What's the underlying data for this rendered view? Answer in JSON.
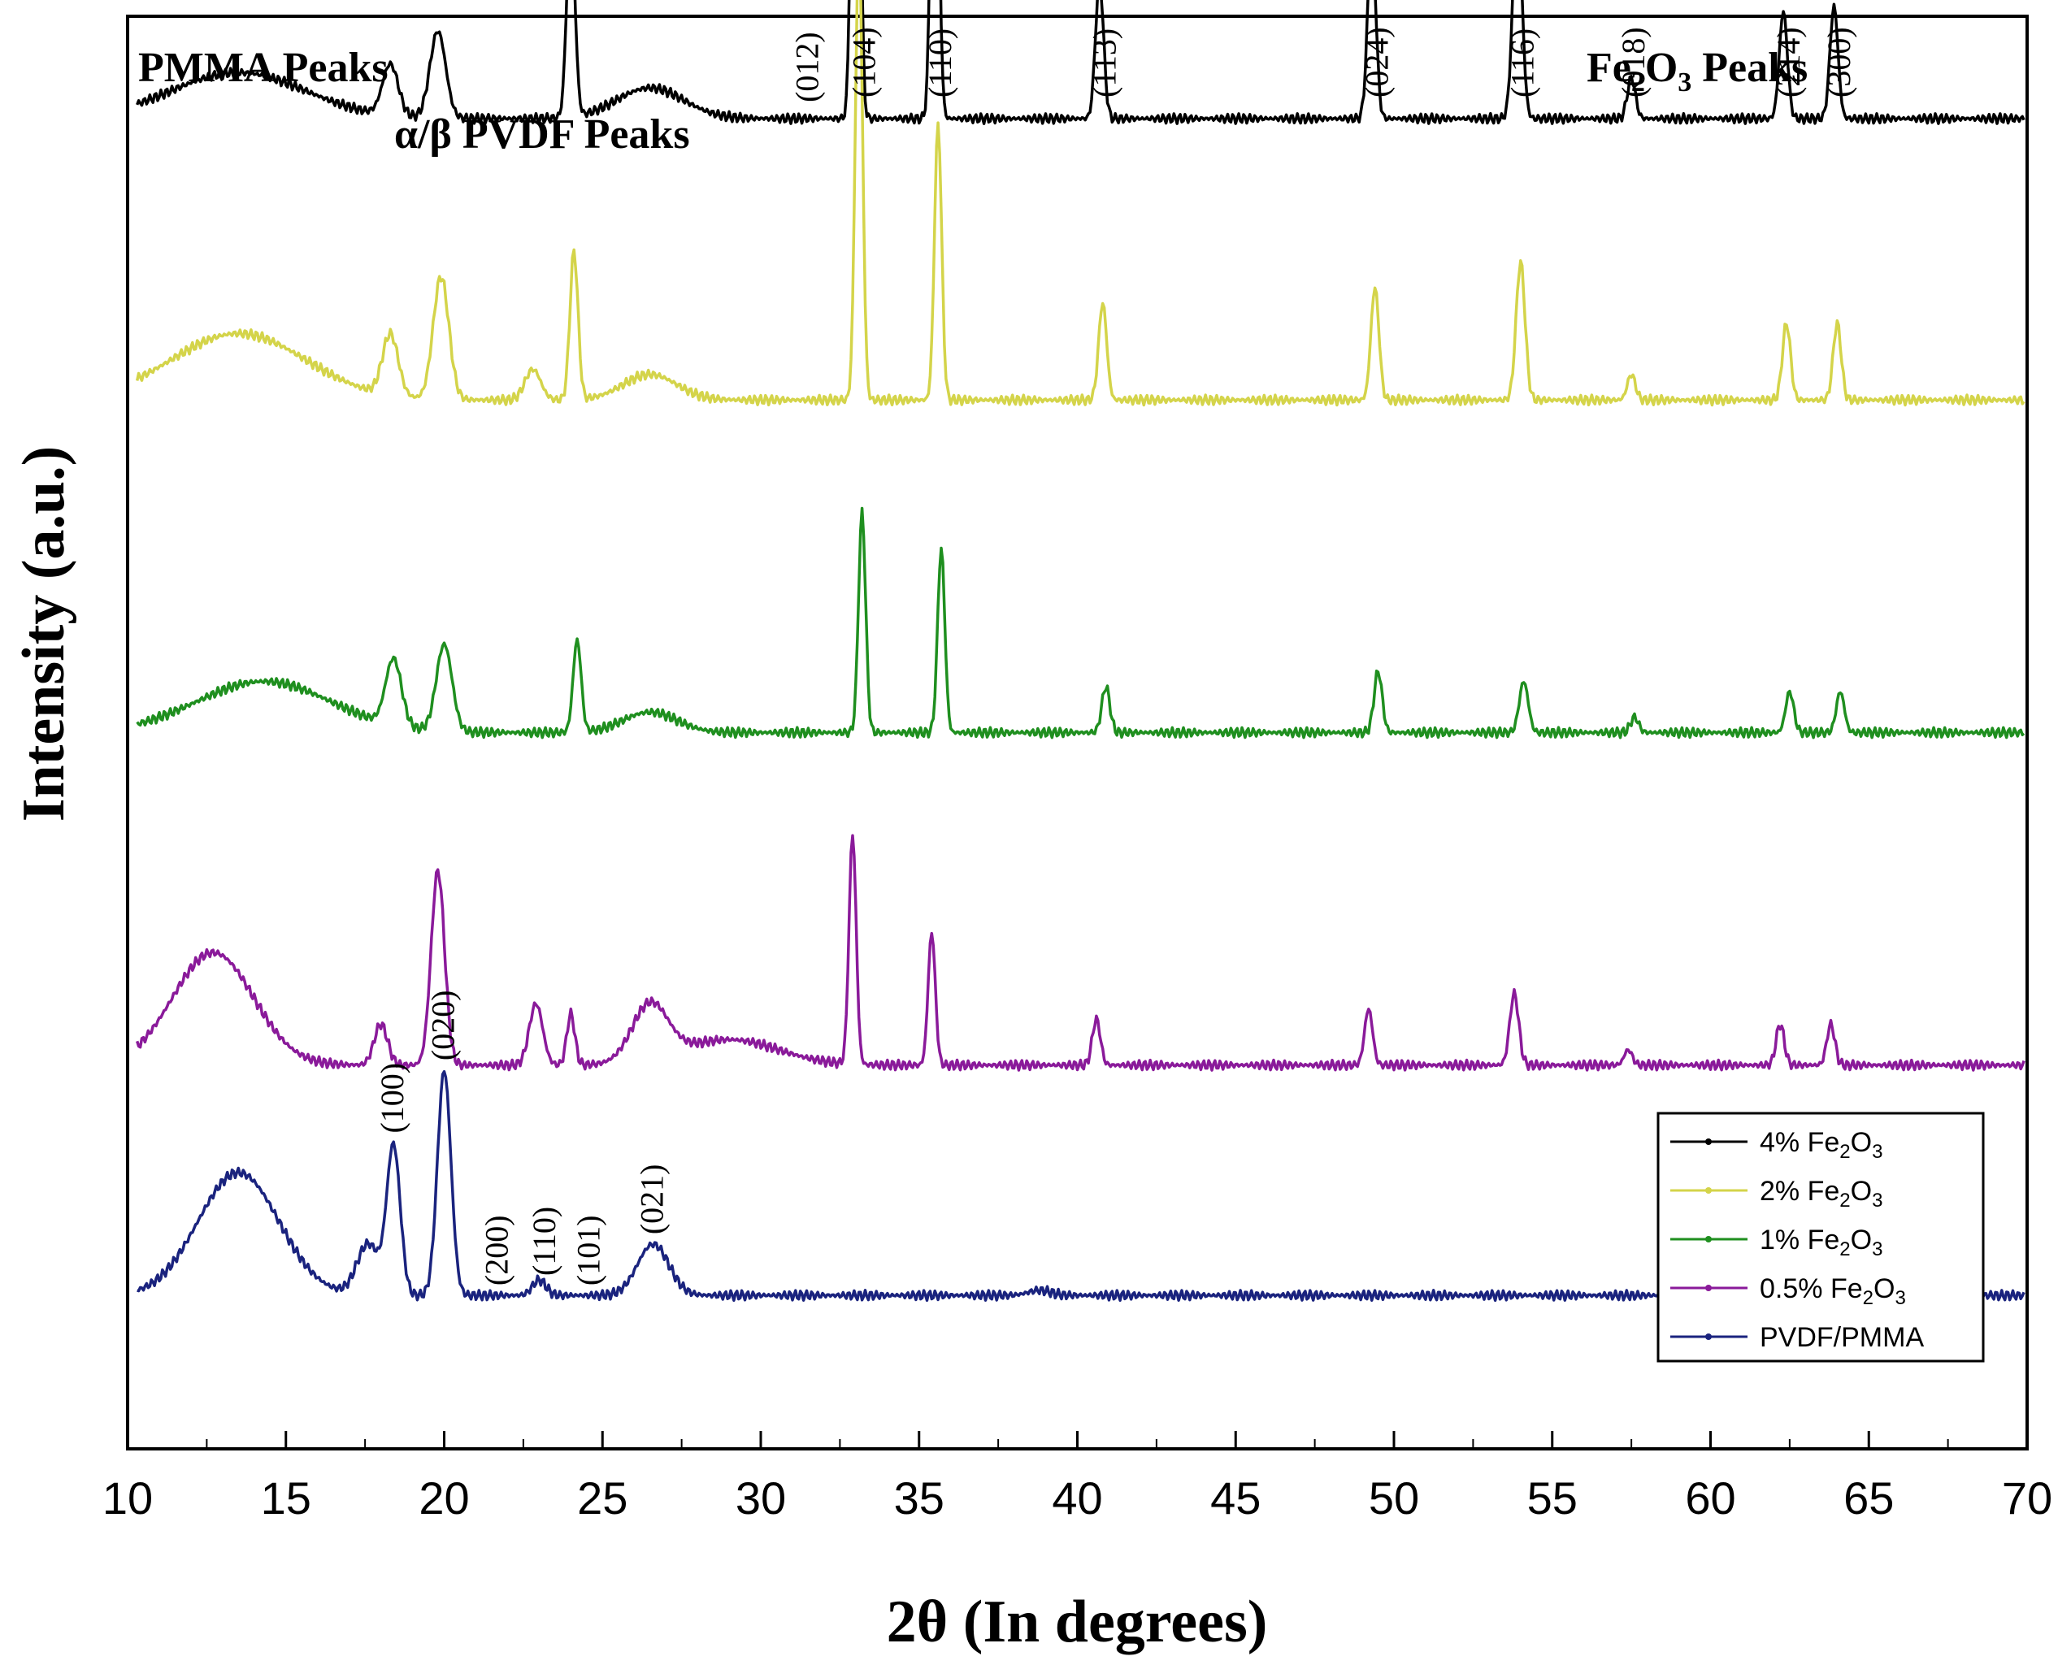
{
  "chart_data": {
    "type": "line",
    "xlabel": "2θ  (In degrees)",
    "ylabel": "Intensity (a.u.)",
    "xlim": [
      10,
      70
    ],
    "xticks": [
      "10",
      "15",
      "20",
      "25",
      "30",
      "35",
      "40",
      "45",
      "50",
      "55",
      "60",
      "65",
      "70"
    ],
    "y_ticks_shown": false,
    "group_labels": {
      "pmma": "PMMA Peaks",
      "pvdf": "α/β PVDF Peaks",
      "fe2o3_pre": "Fe",
      "fe2o3_sub1": "2",
      "fe2o3_mid": "O",
      "fe2o3_sub2": "3",
      "fe2o3_post": " Peaks"
    },
    "fe2o3_peak_labels": [
      {
        "hkl": "(012)",
        "x": 31.5
      },
      {
        "hkl": "(104)",
        "x": 33.3
      },
      {
        "hkl": "(110)",
        "x": 35.7
      },
      {
        "hkl": "(113)",
        "x": 40.9
      },
      {
        "hkl": "(024)",
        "x": 49.5
      },
      {
        "hkl": "(116)",
        "x": 54.1
      },
      {
        "hkl": "(018)",
        "x": 57.6
      },
      {
        "hkl": "(214)",
        "x": 62.5
      },
      {
        "hkl": "(300)",
        "x": 64.1
      }
    ],
    "pvdf_peak_labels": [
      {
        "hkl": "(100)",
        "x": 18.4
      },
      {
        "hkl": "(020)",
        "x": 20.0
      },
      {
        "hkl": "(200)",
        "x": 21.7
      },
      {
        "hkl": "(110)",
        "x": 23.2
      },
      {
        "hkl": "(101)",
        "x": 24.6
      },
      {
        "hkl": "(021)",
        "x": 26.6
      }
    ],
    "legend": [
      {
        "pre": "4% Fe",
        "sub1": "2",
        "mid": "O",
        "sub2": "3"
      },
      {
        "pre": "2% Fe",
        "sub1": "2",
        "mid": "O",
        "sub2": "3"
      },
      {
        "pre": "1% Fe",
        "sub1": "2",
        "mid": "O",
        "sub2": "3"
      },
      {
        "pre": "0.5% Fe",
        "sub1": "2",
        "mid": "O",
        "sub2": "3"
      },
      {
        "pre": "PVDF/PMMA"
      }
    ],
    "series": [
      {
        "name": "4% Fe2O3",
        "color": "#000000",
        "baseline": 2,
        "peaks": [
          {
            "x": 13.5,
            "h": 0.9,
            "w": 3.0
          },
          {
            "x": 18.3,
            "h": 1.0,
            "w": 0.35
          },
          {
            "x": 19.8,
            "h": 1.7,
            "w": 0.35
          },
          {
            "x": 24.0,
            "h": 4.0,
            "w": 0.18
          },
          {
            "x": 26.5,
            "h": 0.6,
            "w": 1.5
          },
          {
            "x": 33.0,
            "h": 13.0,
            "w": 0.16
          },
          {
            "x": 35.5,
            "h": 9.0,
            "w": 0.16
          },
          {
            "x": 40.7,
            "h": 2.7,
            "w": 0.18
          },
          {
            "x": 49.3,
            "h": 3.6,
            "w": 0.18
          },
          {
            "x": 53.9,
            "h": 4.2,
            "w": 0.2
          },
          {
            "x": 57.5,
            "h": 0.8,
            "w": 0.18
          },
          {
            "x": 62.3,
            "h": 2.1,
            "w": 0.18
          },
          {
            "x": 63.9,
            "h": 2.2,
            "w": 0.18
          }
        ]
      },
      {
        "name": "2% Fe2O3",
        "color": "#d4d44a",
        "baseline": 7.5,
        "peaks": [
          {
            "x": 13.5,
            "h": 1.3,
            "w": 3.0
          },
          {
            "x": 18.3,
            "h": 1.2,
            "w": 0.35
          },
          {
            "x": 19.9,
            "h": 2.4,
            "w": 0.35
          },
          {
            "x": 22.8,
            "h": 0.6,
            "w": 0.35
          },
          {
            "x": 24.1,
            "h": 2.9,
            "w": 0.18
          },
          {
            "x": 26.5,
            "h": 0.5,
            "w": 1.2
          },
          {
            "x": 33.1,
            "h": 9.0,
            "w": 0.16
          },
          {
            "x": 35.6,
            "h": 5.4,
            "w": 0.16
          },
          {
            "x": 40.8,
            "h": 1.9,
            "w": 0.18
          },
          {
            "x": 49.4,
            "h": 2.2,
            "w": 0.18
          },
          {
            "x": 54.0,
            "h": 2.7,
            "w": 0.2
          },
          {
            "x": 57.5,
            "h": 0.5,
            "w": 0.18
          },
          {
            "x": 62.4,
            "h": 1.5,
            "w": 0.18
          },
          {
            "x": 64.0,
            "h": 1.5,
            "w": 0.18
          }
        ]
      },
      {
        "name": "1% Fe2O3",
        "color": "#1f8f1f",
        "baseline": 14,
        "peaks": [
          {
            "x": 14.3,
            "h": 1.0,
            "w": 3.0
          },
          {
            "x": 18.4,
            "h": 1.3,
            "w": 0.35
          },
          {
            "x": 20.0,
            "h": 1.7,
            "w": 0.35
          },
          {
            "x": 24.2,
            "h": 1.8,
            "w": 0.18
          },
          {
            "x": 26.5,
            "h": 0.4,
            "w": 1.2
          },
          {
            "x": 33.2,
            "h": 4.3,
            "w": 0.16
          },
          {
            "x": 35.7,
            "h": 3.6,
            "w": 0.16
          },
          {
            "x": 40.9,
            "h": 0.9,
            "w": 0.18
          },
          {
            "x": 49.5,
            "h": 1.2,
            "w": 0.18
          },
          {
            "x": 54.1,
            "h": 1.0,
            "w": 0.2
          },
          {
            "x": 57.6,
            "h": 0.3,
            "w": 0.18
          },
          {
            "x": 62.5,
            "h": 0.8,
            "w": 0.18
          },
          {
            "x": 64.1,
            "h": 0.8,
            "w": 0.18
          }
        ]
      },
      {
        "name": "0.5% Fe2O3",
        "color": "#8a1a9a",
        "baseline": 20.5,
        "peaks": [
          {
            "x": 12.7,
            "h": 2.2,
            "w": 1.8
          },
          {
            "x": 18.0,
            "h": 0.8,
            "w": 0.3
          },
          {
            "x": 19.8,
            "h": 3.8,
            "w": 0.3
          },
          {
            "x": 22.9,
            "h": 1.2,
            "w": 0.3
          },
          {
            "x": 24.0,
            "h": 1.0,
            "w": 0.18
          },
          {
            "x": 26.5,
            "h": 1.1,
            "w": 0.8
          },
          {
            "x": 29.0,
            "h": 0.5,
            "w": 2.2
          },
          {
            "x": 32.9,
            "h": 4.5,
            "w": 0.16
          },
          {
            "x": 35.4,
            "h": 2.6,
            "w": 0.16
          },
          {
            "x": 40.6,
            "h": 0.9,
            "w": 0.18
          },
          {
            "x": 49.2,
            "h": 1.1,
            "w": 0.18
          },
          {
            "x": 53.8,
            "h": 1.4,
            "w": 0.2
          },
          {
            "x": 57.4,
            "h": 0.3,
            "w": 0.18
          },
          {
            "x": 62.2,
            "h": 0.8,
            "w": 0.18
          },
          {
            "x": 63.8,
            "h": 0.8,
            "w": 0.18
          }
        ]
      },
      {
        "name": "PVDF/PMMA",
        "color": "#1a237e",
        "baseline": 25,
        "peaks": [
          {
            "x": 13.5,
            "h": 2.4,
            "w": 1.8
          },
          {
            "x": 17.6,
            "h": 1.0,
            "w": 0.5
          },
          {
            "x": 18.4,
            "h": 2.9,
            "w": 0.3
          },
          {
            "x": 20.0,
            "h": 4.4,
            "w": 0.3
          },
          {
            "x": 23.0,
            "h": 0.3,
            "w": 0.3
          },
          {
            "x": 26.6,
            "h": 1.0,
            "w": 0.7
          },
          {
            "x": 38.8,
            "h": 0.1,
            "w": 0.5
          }
        ]
      }
    ]
  }
}
